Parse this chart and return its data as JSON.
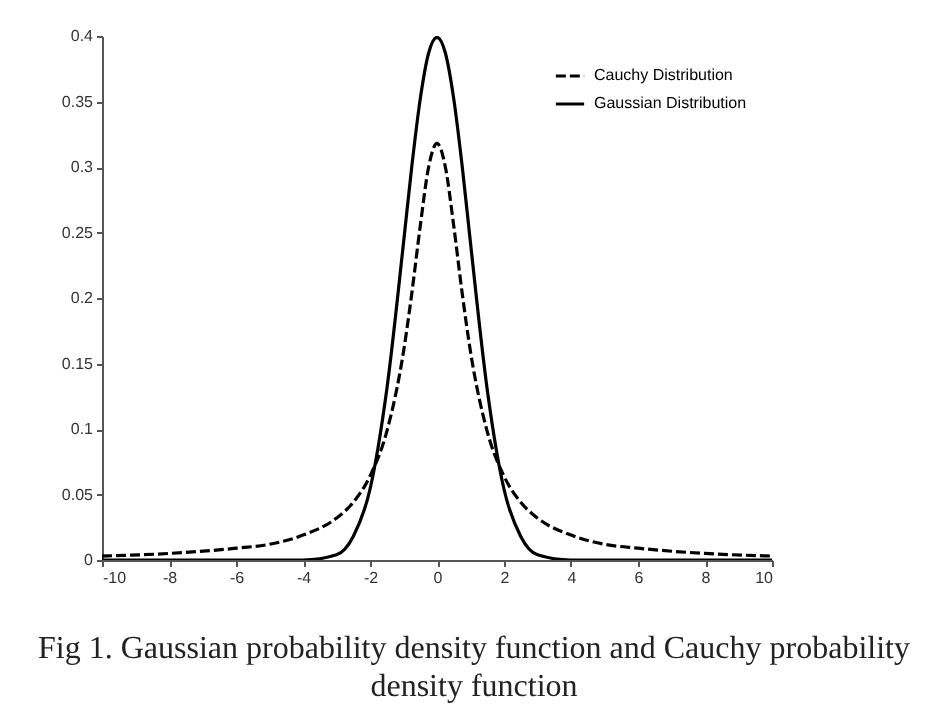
{
  "chart_data": {
    "type": "line",
    "xlim": [
      -10,
      10
    ],
    "ylim": [
      0,
      0.4
    ],
    "xticks": [
      -10,
      -8,
      -6,
      -4,
      -2,
      0,
      2,
      4,
      6,
      8,
      10
    ],
    "yticks": [
      0,
      0.05,
      0.1,
      0.15,
      0.2,
      0.25,
      0.3,
      0.35,
      0.4
    ],
    "grid": false,
    "legend": "top right",
    "annotations": [
      "Fig 1. Gaussian probability density function and Cauchy probability density function"
    ],
    "x": [
      -10,
      -8,
      -6,
      -5,
      -4,
      -3,
      -2.5,
      -2,
      -1.5,
      -1,
      -0.75,
      -0.5,
      -0.25,
      0,
      0.25,
      0.5,
      0.75,
      1,
      1.5,
      2,
      2.5,
      3,
      4,
      5,
      6,
      8,
      10
    ],
    "series": [
      {
        "name": "Cauchy Distribution",
        "color": "#000000",
        "line_style": "dashed",
        "values": [
          0.003,
          0.005,
          0.009,
          0.012,
          0.019,
          0.032,
          0.044,
          0.064,
          0.098,
          0.159,
          0.204,
          0.255,
          0.3,
          0.318,
          0.3,
          0.255,
          0.204,
          0.159,
          0.098,
          0.064,
          0.044,
          0.032,
          0.019,
          0.012,
          0.009,
          0.005,
          0.003
        ]
      },
      {
        "name": "Gaussian Distribution",
        "color": "#000000",
        "line_style": "solid",
        "values": [
          0,
          0,
          0,
          0,
          0,
          0.004,
          0.018,
          0.054,
          0.13,
          0.242,
          0.301,
          0.352,
          0.387,
          0.399,
          0.387,
          0.352,
          0.301,
          0.242,
          0.13,
          0.054,
          0.018,
          0.004,
          0,
          0,
          0,
          0,
          0
        ]
      }
    ]
  }
}
